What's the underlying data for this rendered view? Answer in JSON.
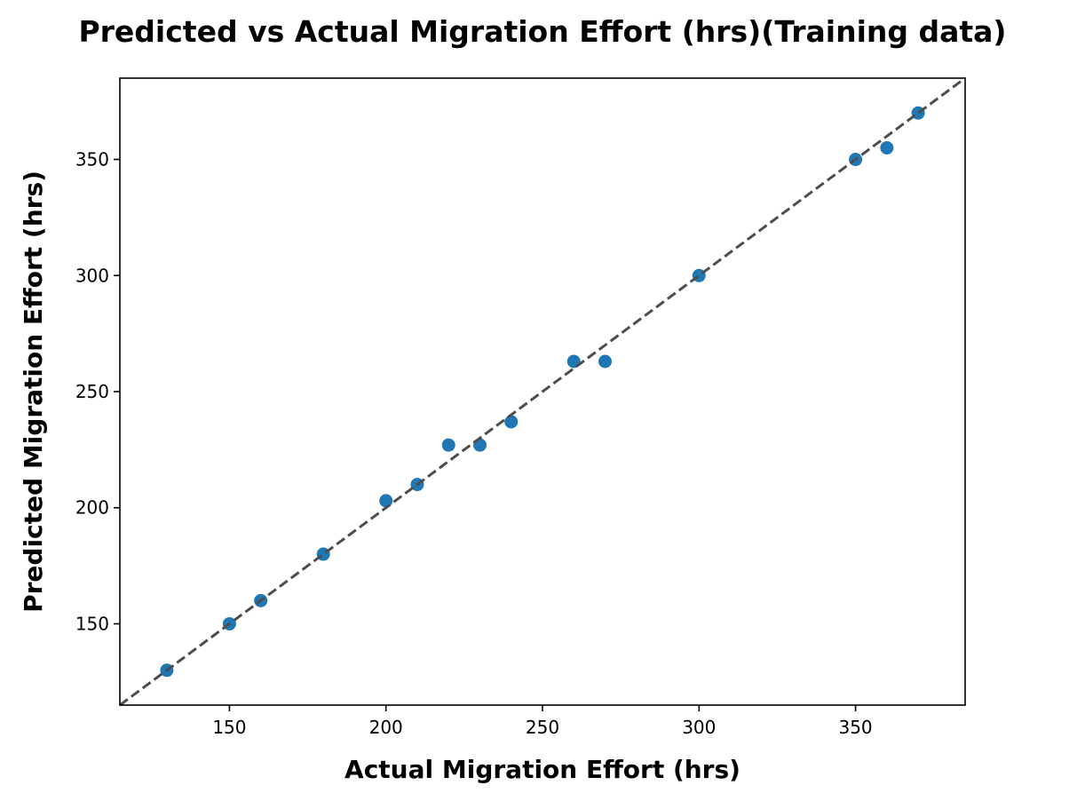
{
  "chart_data": {
    "type": "scatter",
    "title": "Predicted vs Actual Migration Effort (hrs)(Training data)",
    "xlabel": "Actual Migration Effort (hrs)",
    "ylabel": "Predicted Migration Effort (hrs)",
    "xlim": [
      115,
      385
    ],
    "ylim": [
      115,
      385
    ],
    "xticks": [
      150,
      200,
      250,
      300,
      350
    ],
    "yticks": [
      150,
      200,
      250,
      300,
      350
    ],
    "grid": false,
    "reference_line": {
      "style": "dashed",
      "color": "#4d4d4d",
      "from": [
        115,
        115
      ],
      "to": [
        385,
        385
      ]
    },
    "series": [
      {
        "color": "#1f77b4",
        "points": [
          {
            "x": 130,
            "y": 130
          },
          {
            "x": 150,
            "y": 150
          },
          {
            "x": 160,
            "y": 160
          },
          {
            "x": 180,
            "y": 180
          },
          {
            "x": 200,
            "y": 203
          },
          {
            "x": 210,
            "y": 210
          },
          {
            "x": 220,
            "y": 227
          },
          {
            "x": 230,
            "y": 227
          },
          {
            "x": 240,
            "y": 237
          },
          {
            "x": 260,
            "y": 263
          },
          {
            "x": 270,
            "y": 263
          },
          {
            "x": 300,
            "y": 300
          },
          {
            "x": 350,
            "y": 350
          },
          {
            "x": 360,
            "y": 355
          },
          {
            "x": 370,
            "y": 370
          }
        ]
      }
    ]
  }
}
